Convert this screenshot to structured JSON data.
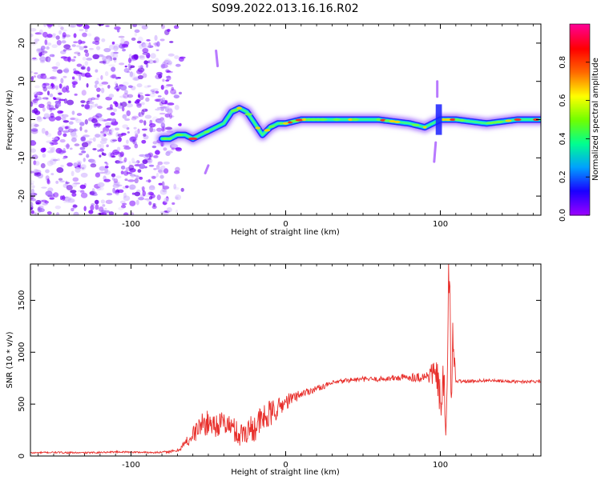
{
  "page_title": "S099.2022.013.16.16.R02",
  "colors": {
    "snr_line": "#e8302c",
    "colorbar_stops": [
      "#9a00ff",
      "#1a00ff",
      "#00a0ff",
      "#00ff90",
      "#70ff00",
      "#ffff00",
      "#ff6a00",
      "#ff0000",
      "#ff0090"
    ]
  },
  "chart_data": [
    {
      "type": "heatmap",
      "title": "",
      "xlabel": "Height of straight line (km)",
      "ylabel": "Frequency (Hz)",
      "xlim": [
        -165,
        165
      ],
      "ylim": [
        -25,
        25
      ],
      "x_ticks": [
        -100,
        0,
        100
      ],
      "y_ticks": [
        -20,
        -10,
        0,
        10,
        20
      ],
      "colorbar": {
        "label": "Normalized spectral amplitude",
        "range": [
          0,
          1
        ],
        "ticks": [
          "0.0",
          "0.2",
          "0.4",
          "0.6",
          "0.8"
        ]
      },
      "ridge": {
        "x": [
          -80,
          -75,
          -70,
          -65,
          -60,
          -55,
          -50,
          -45,
          -40,
          -35,
          -30,
          -25,
          -20,
          -15,
          -10,
          -5,
          0,
          10,
          20,
          40,
          60,
          80,
          90,
          95,
          100,
          110,
          130,
          150,
          165
        ],
        "y": [
          -5,
          -5,
          -4,
          -4,
          -5,
          -4,
          -3,
          -2,
          -1,
          2,
          3,
          2,
          -1,
          -4,
          -2,
          -1,
          -1,
          0,
          0,
          0,
          0,
          -1,
          -2,
          -1,
          0,
          0,
          -1,
          0,
          0
        ]
      }
    },
    {
      "type": "line",
      "title": "",
      "xlabel": "Height of straight line (km)",
      "ylabel": "SNR (10 * v/v)",
      "xlim": [
        -165,
        165
      ],
      "ylim": [
        0,
        1850
      ],
      "x_ticks": [
        -100,
        0,
        100
      ],
      "y_ticks": [
        0,
        500,
        1000,
        1500
      ],
      "series": [
        {
          "x": [
            -165,
            -150,
            -130,
            -110,
            -90,
            -80,
            -70,
            -65,
            -60,
            -55,
            -50,
            -45,
            -40,
            -35,
            -30,
            -25,
            -20,
            -15,
            -10,
            -5,
            0,
            5,
            10,
            20,
            30,
            40,
            50,
            60,
            70,
            80,
            90,
            95,
            98,
            100,
            102,
            104,
            105,
            106,
            107,
            108,
            110,
            120,
            130,
            140,
            150,
            160,
            165
          ],
          "y": [
            30,
            35,
            30,
            40,
            35,
            35,
            50,
            120,
            200,
            300,
            320,
            300,
            320,
            280,
            200,
            250,
            280,
            350,
            400,
            460,
            520,
            560,
            600,
            650,
            700,
            730,
            740,
            740,
            750,
            760,
            760,
            800,
            760,
            500,
            700,
            200,
            1500,
            1850,
            600,
            1100,
            720,
            720,
            730,
            720,
            715,
            720,
            720
          ],
          "noise": [
            8,
            8,
            8,
            8,
            8,
            10,
            15,
            50,
            90,
            110,
            120,
            120,
            110,
            120,
            120,
            130,
            140,
            150,
            140,
            100,
            80,
            60,
            40,
            30,
            25,
            25,
            25,
            25,
            30,
            40,
            50,
            120,
            150,
            200,
            250,
            200,
            300,
            300,
            250,
            200,
            20,
            15,
            15,
            15,
            15,
            15,
            15
          ]
        }
      ]
    }
  ]
}
